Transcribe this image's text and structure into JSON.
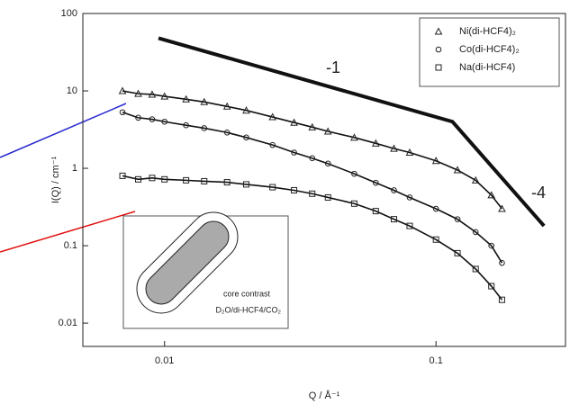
{
  "chart_data": {
    "type": "scatter",
    "xscale": "log",
    "yscale": "log",
    "xlabel": "Q / Å⁻¹",
    "ylabel": "I(Q) / cm⁻¹",
    "xlim": [
      0.005,
      0.3
    ],
    "ylim": [
      0.005,
      100
    ],
    "xticks": [
      0.01,
      0.1
    ],
    "yticks": [
      0.01,
      0.1,
      1,
      10,
      100
    ],
    "grid": false,
    "legend": "upper right",
    "series": [
      {
        "name": "Ni(di-HCF4)₂",
        "color": "#222222",
        "marker": "triangle",
        "x": [
          0.007,
          0.008,
          0.009,
          0.01,
          0.012,
          0.014,
          0.017,
          0.02,
          0.025,
          0.03,
          0.035,
          0.04,
          0.05,
          0.06,
          0.07,
          0.08,
          0.1,
          0.12,
          0.14,
          0.16,
          0.175
        ],
        "values": [
          10,
          9.2,
          9.0,
          8.5,
          7.8,
          7.2,
          6.3,
          5.6,
          4.6,
          3.9,
          3.4,
          3.0,
          2.5,
          2.1,
          1.8,
          1.6,
          1.25,
          0.95,
          0.7,
          0.45,
          0.3
        ]
      },
      {
        "name": "Co(di-HCF4)₂",
        "color": "#222222",
        "marker": "circle",
        "x": [
          0.007,
          0.008,
          0.009,
          0.01,
          0.012,
          0.014,
          0.017,
          0.02,
          0.025,
          0.03,
          0.035,
          0.04,
          0.05,
          0.06,
          0.07,
          0.08,
          0.1,
          0.12,
          0.14,
          0.16,
          0.175
        ],
        "values": [
          5.3,
          4.5,
          4.3,
          4.0,
          3.6,
          3.3,
          2.9,
          2.5,
          2.0,
          1.6,
          1.35,
          1.15,
          0.85,
          0.65,
          0.52,
          0.42,
          0.3,
          0.22,
          0.15,
          0.1,
          0.06
        ]
      },
      {
        "name": "Na(di-HCF4)",
        "color": "#222222",
        "marker": "square",
        "x": [
          0.007,
          0.008,
          0.009,
          0.01,
          0.012,
          0.014,
          0.017,
          0.02,
          0.025,
          0.03,
          0.035,
          0.04,
          0.05,
          0.06,
          0.07,
          0.08,
          0.1,
          0.12,
          0.14,
          0.16,
          0.175
        ],
        "values": [
          0.8,
          0.72,
          0.75,
          0.72,
          0.7,
          0.68,
          0.66,
          0.62,
          0.57,
          0.52,
          0.47,
          0.42,
          0.35,
          0.28,
          0.22,
          0.18,
          0.12,
          0.08,
          0.05,
          0.03,
          0.02
        ]
      }
    ],
    "guide": {
      "x": [
        0.0095,
        0.115,
        0.25
      ],
      "y": [
        48,
        4,
        0.18
      ]
    },
    "annotations": [
      "-1",
      "-4",
      "core contrast",
      "D₂O/di-HCF4/CO₂"
    ]
  }
}
